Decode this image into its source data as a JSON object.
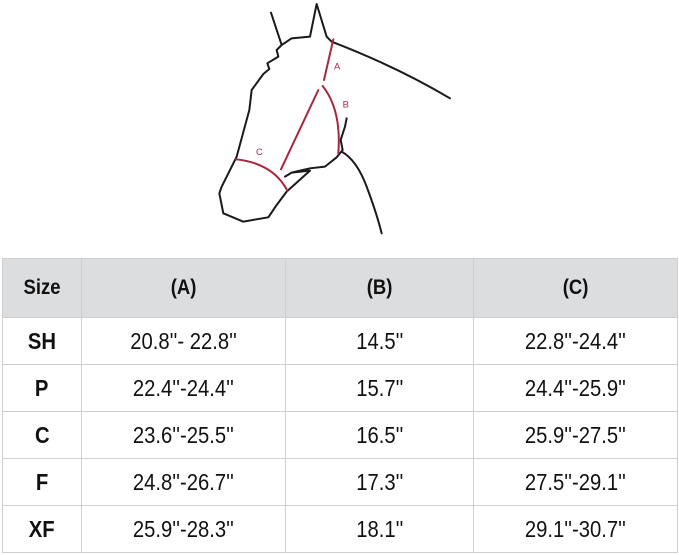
{
  "diagram": {
    "labels": [
      "A",
      "B",
      "C"
    ],
    "outline_color": "#1a1a1a",
    "measure_color": "#a8273f"
  },
  "table": {
    "headers": [
      "Size",
      "(A)",
      "(B)",
      "(C)"
    ],
    "rows": [
      [
        "SH",
        "20.8''- 22.8''",
        "14.5''",
        "22.8''-24.4''"
      ],
      [
        "P",
        "22.4''-24.4''",
        "15.7''",
        "24.4''-25.9''"
      ],
      [
        "C",
        "23.6''-25.5''",
        "16.5''",
        "25.9''-27.5''"
      ],
      [
        "F",
        "24.8''-26.7''",
        "17.3''",
        "27.5''-29.1''"
      ],
      [
        "XF",
        "25.9''-28.3''",
        "18.1''",
        "29.1''-30.7''"
      ]
    ],
    "header_bg": "#dcdddf"
  }
}
